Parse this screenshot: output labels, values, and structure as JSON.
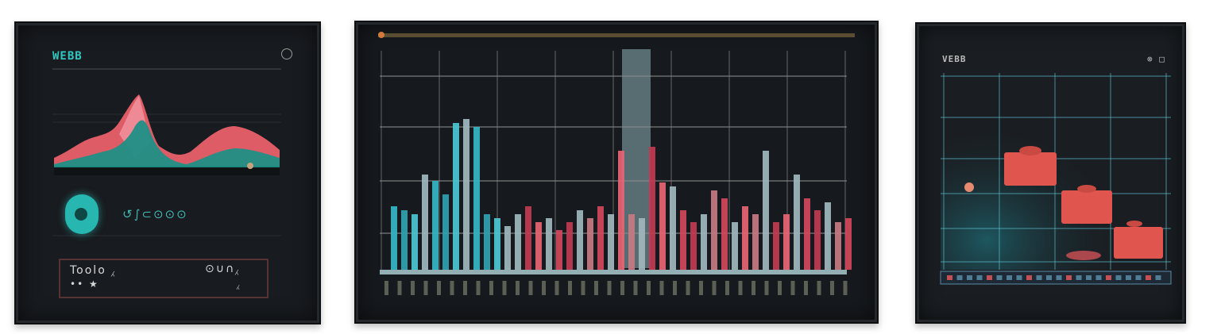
{
  "colors": {
    "teal": "#2fc7c0",
    "coral": "#e8606a",
    "salmon": "#e0564e",
    "grid": "#8e8e8e",
    "panel_bg": "#181b1f"
  },
  "left_panel": {
    "title": "WEBB",
    "corner_icon": "info-icon",
    "status_row": "↺∫⊂⊙⊙⊙",
    "footer_left_line1": "Toolo ⁁",
    "footer_left_line2": "•• ★",
    "footer_right_line1": "⊙∪∩⁁",
    "footer_right_line2": "⁁"
  },
  "mid_panel": {
    "ticks": [
      "·",
      "·",
      "·",
      "·",
      "·",
      "·",
      "·",
      "·"
    ]
  },
  "right_panel": {
    "title": "VEBB",
    "corner_icon": "close-icon",
    "corner_text": "⊗ □"
  }
}
